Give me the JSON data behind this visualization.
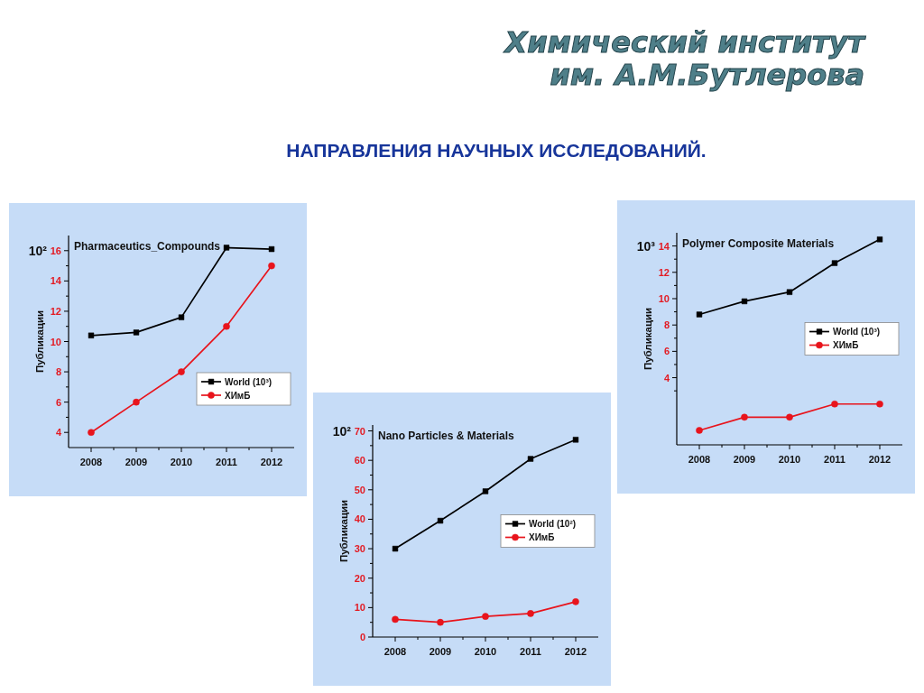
{
  "chart_data": [
    {
      "type": "other",
      "title": "НАПРАВЛЕНИЯ НАУЧНЫХ ИССЛЕДОВАНИЙ.",
      "annotations": [
        "Химический институт",
        "им. А.М.Бутлерова"
      ]
    },
    {
      "type": "line",
      "title": "Pharmaceutics_Compounds",
      "ylabel": "Публикации",
      "annotations": [
        "10²"
      ],
      "x": [
        2008,
        2009,
        2010,
        2011,
        2012
      ],
      "series": [
        {
          "name": "World (10³)",
          "color": "#000000",
          "marker": "square",
          "values": [
            10.4,
            10.6,
            11.6,
            16.2,
            16.1
          ]
        },
        {
          "name": "ХИмБ",
          "color": "#e8141c",
          "marker": "circle",
          "values": [
            4,
            6,
            8,
            11,
            15
          ]
        }
      ],
      "xlim": [
        2007.5,
        2012.5
      ],
      "xticks": [
        2008,
        {
          "value": 2008.5,
          "label": null
        },
        2009,
        {
          "value": 2009.5,
          "label": null
        },
        2010,
        {
          "value": 2010.5,
          "label": null
        },
        2011,
        {
          "value": 2011.5,
          "label": null
        },
        2012
      ],
      "ylim": [
        3,
        17
      ],
      "yticks": [
        4,
        {
          "value": 5,
          "label": null
        },
        6,
        {
          "value": 7,
          "label": null
        },
        8,
        {
          "value": 9,
          "label": null
        },
        10,
        {
          "value": 11,
          "label": null
        },
        12,
        {
          "value": 13,
          "label": null
        },
        14,
        {
          "value": 15,
          "label": null
        },
        16
      ],
      "legend": "bottom right"
    },
    {
      "type": "line",
      "title": "Polymer Composite Materials",
      "ylabel": "Публикации",
      "annotations": [
        "10³"
      ],
      "x": [
        2008,
        2009,
        2010,
        2011,
        2012
      ],
      "series": [
        {
          "name": "World (10³)",
          "color": "#000000",
          "marker": "square",
          "values": [
            8.8,
            9.8,
            10.5,
            12.7,
            14.5
          ]
        },
        {
          "name": "ХИмБ",
          "color": "#e8141c",
          "marker": "circle",
          "values": [
            0,
            1,
            1,
            2,
            2
          ]
        }
      ],
      "xlim": [
        2007.5,
        2012.5
      ],
      "xticks": [
        2008,
        {
          "value": 2008.5,
          "label": null
        },
        2009,
        {
          "value": 2009.5,
          "label": null
        },
        2010,
        {
          "value": 2010.5,
          "label": null
        },
        2011,
        {
          "value": 2011.5,
          "label": null
        },
        2012
      ],
      "ylim": [
        -1.1,
        15
      ],
      "yticks": [
        {
          "value": 3,
          "label": null
        },
        4,
        {
          "value": 5,
          "label": null
        },
        6,
        {
          "value": 7,
          "label": null
        },
        8,
        {
          "value": 9,
          "label": null
        },
        10,
        {
          "value": 11,
          "label": null
        },
        12,
        {
          "value": 13,
          "label": null
        },
        14
      ],
      "legend": "right"
    },
    {
      "type": "line",
      "title": "Nano Particles & Materials",
      "ylabel": "Публикации",
      "annotations": [
        "10²"
      ],
      "x": [
        2008,
        2009,
        2010,
        2011,
        2012
      ],
      "series": [
        {
          "name": "World (10²)",
          "color": "#000000",
          "marker": "square",
          "values": [
            30,
            39.5,
            49.5,
            60.5,
            67
          ]
        },
        {
          "name": "ХИмБ",
          "color": "#e8141c",
          "marker": "circle",
          "values": [
            6,
            5,
            7,
            8,
            12
          ]
        }
      ],
      "xlim": [
        2007.5,
        2012.5
      ],
      "xticks": [
        2008,
        {
          "value": 2008.5,
          "label": null
        },
        2009,
        {
          "value": 2009.5,
          "label": null
        },
        2010,
        {
          "value": 2010.5,
          "label": null
        },
        2011,
        {
          "value": 2011.5,
          "label": null
        },
        2012
      ],
      "ylim": [
        0,
        72
      ],
      "yticks": [
        0,
        {
          "value": 5,
          "label": null
        },
        10,
        {
          "value": 15,
          "label": null
        },
        20,
        {
          "value": 25,
          "label": null
        },
        30,
        {
          "value": 35,
          "label": null
        },
        40,
        {
          "value": 45,
          "label": null
        },
        50,
        {
          "value": 55,
          "label": null
        },
        60,
        {
          "value": 65,
          "label": null
        },
        70
      ],
      "legend": "right"
    }
  ]
}
